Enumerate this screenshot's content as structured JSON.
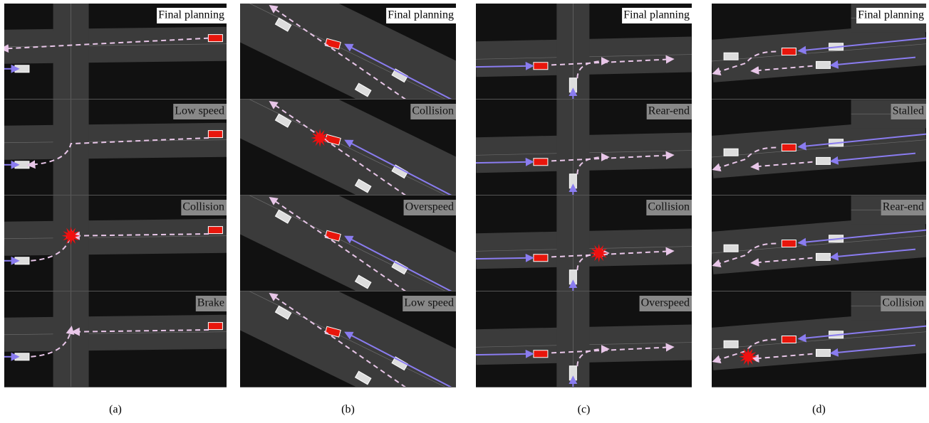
{
  "columns": [
    {
      "caption": "(a)",
      "panels": [
        {
          "label": "Final planning"
        },
        {
          "label": "Low speed"
        },
        {
          "label": "Collision"
        },
        {
          "label": "Brake"
        }
      ]
    },
    {
      "caption": "(b)",
      "panels": [
        {
          "label": "Final planning"
        },
        {
          "label": "Collision"
        },
        {
          "label": "Overspeed"
        },
        {
          "label": "Low speed"
        }
      ]
    },
    {
      "caption": "(c)",
      "panels": [
        {
          "label": "Final planning"
        },
        {
          "label": "Rear-end"
        },
        {
          "label": "Collision"
        },
        {
          "label": "Overspeed"
        }
      ]
    },
    {
      "caption": "(d)",
      "panels": [
        {
          "label": "Final planning"
        },
        {
          "label": "Stalled"
        },
        {
          "label": "Rear-end"
        },
        {
          "label": "Collision"
        }
      ]
    }
  ]
}
